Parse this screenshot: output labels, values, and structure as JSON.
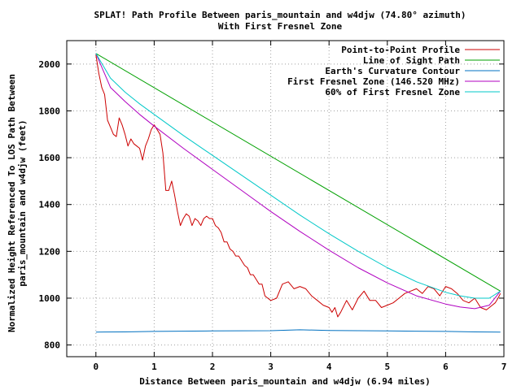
{
  "chart_data": {
    "type": "line",
    "title": "SPLAT! Path Profile Between paris_mountain and w4djw (74.80° azimuth)",
    "subtitle": "With First Fresnel Zone",
    "xlabel": "Distance Between paris_mountain and w4djw (6.94 miles)",
    "ylabel_line1": "Normalized Height Referenced To LOS Path Between",
    "ylabel_line2": "paris_mountain and w4djw (feet)",
    "xlim": [
      -0.5,
      7
    ],
    "ylim": [
      750,
      2100
    ],
    "xticks": [
      0,
      1,
      2,
      3,
      4,
      5,
      6,
      7
    ],
    "yticks": [
      800,
      1000,
      1200,
      1400,
      1600,
      1800,
      2000
    ],
    "grid": true,
    "legend_position": "top-right",
    "series": [
      {
        "name": "Point-to-Point Profile",
        "color": "#cc0000",
        "x": [
          0,
          0.05,
          0.1,
          0.15,
          0.2,
          0.25,
          0.3,
          0.35,
          0.4,
          0.45,
          0.5,
          0.55,
          0.6,
          0.65,
          0.7,
          0.75,
          0.8,
          0.85,
          0.9,
          0.95,
          1.0,
          1.05,
          1.1,
          1.15,
          1.2,
          1.25,
          1.3,
          1.35,
          1.4,
          1.45,
          1.5,
          1.55,
          1.6,
          1.65,
          1.7,
          1.75,
          1.8,
          1.85,
          1.9,
          1.95,
          2.0,
          2.05,
          2.1,
          2.15,
          2.2,
          2.25,
          2.3,
          2.35,
          2.4,
          2.45,
          2.5,
          2.55,
          2.6,
          2.65,
          2.7,
          2.75,
          2.8,
          2.85,
          2.9,
          2.95,
          3.0,
          3.1,
          3.2,
          3.3,
          3.4,
          3.5,
          3.6,
          3.7,
          3.8,
          3.9,
          4.0,
          4.05,
          4.1,
          4.15,
          4.2,
          4.3,
          4.4,
          4.5,
          4.6,
          4.7,
          4.8,
          4.9,
          5.0,
          5.1,
          5.2,
          5.3,
          5.4,
          5.5,
          5.6,
          5.7,
          5.8,
          5.9,
          6.0,
          6.1,
          6.2,
          6.3,
          6.4,
          6.5,
          6.6,
          6.7,
          6.75,
          6.8,
          6.85,
          6.9,
          6.94
        ],
        "y": [
          2040,
          1960,
          1900,
          1870,
          1760,
          1730,
          1700,
          1690,
          1770,
          1740,
          1700,
          1650,
          1680,
          1660,
          1650,
          1640,
          1590,
          1650,
          1680,
          1720,
          1740,
          1720,
          1700,
          1620,
          1460,
          1460,
          1500,
          1440,
          1370,
          1310,
          1340,
          1360,
          1350,
          1310,
          1340,
          1330,
          1310,
          1340,
          1350,
          1340,
          1340,
          1310,
          1300,
          1280,
          1240,
          1240,
          1210,
          1200,
          1180,
          1180,
          1160,
          1140,
          1130,
          1100,
          1100,
          1080,
          1060,
          1060,
          1010,
          1000,
          990,
          1000,
          1060,
          1070,
          1040,
          1050,
          1040,
          1010,
          990,
          970,
          960,
          940,
          960,
          920,
          940,
          990,
          950,
          1000,
          1030,
          990,
          990,
          960,
          970,
          980,
          1000,
          1020,
          1030,
          1040,
          1020,
          1050,
          1040,
          1010,
          1050,
          1040,
          1020,
          990,
          980,
          1000,
          960,
          950,
          960,
          970,
          980,
          1000,
          1020
        ]
      },
      {
        "name": "Line of Sight Path",
        "color": "#00a000",
        "x": [
          0,
          6.94
        ],
        "y": [
          2045,
          1030
        ]
      },
      {
        "name": "Earth's Curvature Contour",
        "color": "#0070c0",
        "x": [
          0,
          0.5,
          1.0,
          2.0,
          3.0,
          3.5,
          4.0,
          5.0,
          6.0,
          6.5,
          6.94
        ],
        "y": [
          855,
          856,
          858,
          860,
          861,
          865,
          862,
          860,
          858,
          856,
          855
        ]
      },
      {
        "name": "First Fresnel Zone (146.520 MHz)",
        "color": "#b000c0",
        "x": [
          0,
          0.25,
          0.5,
          0.75,
          1.0,
          1.5,
          2.0,
          2.5,
          3.0,
          3.5,
          4.0,
          4.5,
          5.0,
          5.5,
          6.0,
          6.25,
          6.5,
          6.75,
          6.94
        ],
        "y": [
          2045,
          1900,
          1840,
          1785,
          1735,
          1640,
          1550,
          1460,
          1370,
          1285,
          1205,
          1130,
          1065,
          1010,
          975,
          962,
          955,
          970,
          1030
        ]
      },
      {
        "name": "60% of First Fresnel Zone",
        "color": "#00c8c8",
        "x": [
          0,
          0.25,
          0.5,
          0.75,
          1.0,
          1.5,
          2.0,
          2.5,
          3.0,
          3.5,
          4.0,
          4.5,
          5.0,
          5.5,
          6.0,
          6.25,
          6.5,
          6.75,
          6.94
        ],
        "y": [
          2045,
          1940,
          1880,
          1830,
          1785,
          1695,
          1610,
          1525,
          1440,
          1355,
          1275,
          1200,
          1130,
          1070,
          1025,
          1010,
          1000,
          1000,
          1030
        ]
      }
    ]
  }
}
